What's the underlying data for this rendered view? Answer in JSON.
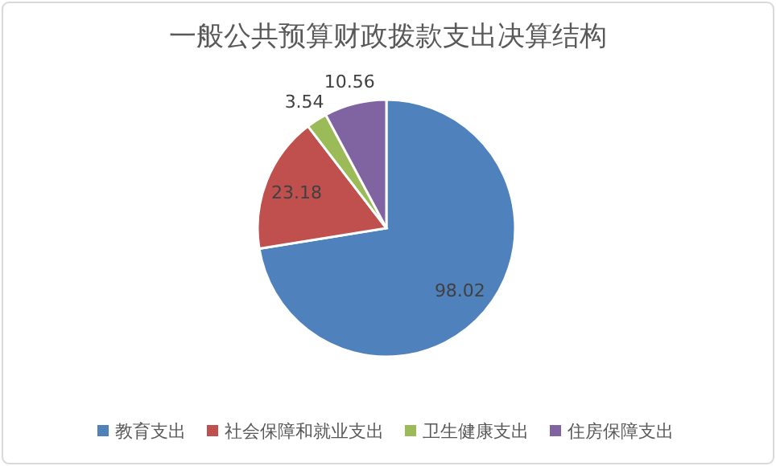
{
  "chart_data": {
    "type": "pie",
    "title": "一般公共预算财政拨款支出决算结构",
    "categories": [
      "教育支出",
      "社会保障和就业支出",
      "卫生健康支出",
      "住房保障支出"
    ],
    "values": [
      98.02,
      23.18,
      3.54,
      10.56
    ],
    "colors": [
      "#4f81bd",
      "#c0504d",
      "#9bbb59",
      "#8064a2"
    ],
    "data_labels": true,
    "legend": "bottom"
  }
}
